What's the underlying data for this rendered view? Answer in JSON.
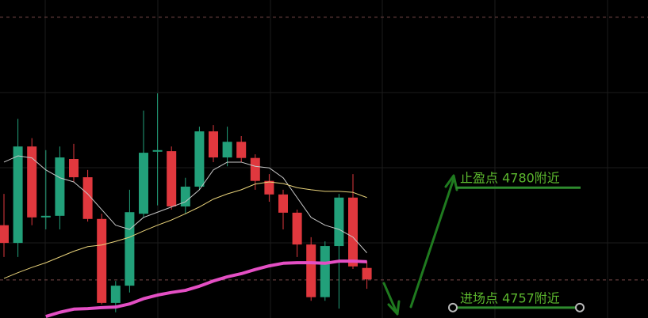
{
  "chart_data": {
    "type": "candlestick",
    "ylim": [
      4755,
      4816
    ],
    "up_color": "#22a07a",
    "down_color": "#e0383e",
    "open": [
      4772.8,
      4769.4,
      4787.9,
      4774.3,
      4774.6,
      4785.5,
      4782.0,
      4774.0,
      4757.9,
      4761.2,
      4775.0,
      4786.9,
      4787.0,
      4776.4,
      4780.2,
      4790.8,
      4785.8,
      4788.8,
      4785.7,
      4781.3,
      4778.7,
      4775.2,
      4769.1,
      4759.0,
      4768.8,
      4778.1,
      4764.6
    ],
    "high": [
      4778.8,
      4793.2,
      4789.5,
      4787.2,
      4787.9,
      4788.4,
      4783.4,
      4775.0,
      4762.1,
      4779.6,
      4794.8,
      4798.1,
      4787.9,
      4781.9,
      4791.7,
      4792.0,
      4791.7,
      4789.9,
      4786.4,
      4782.6,
      4779.6,
      4775.8,
      4770.5,
      4769.7,
      4778.8,
      4782.6,
      4765.9
    ],
    "low": [
      4766.7,
      4766.7,
      4772.8,
      4772.0,
      4772.0,
      4781.1,
      4773.5,
      4757.6,
      4756.1,
      4759.9,
      4774.3,
      4776.6,
      4775.8,
      4775.0,
      4779.6,
      4784.9,
      4784.1,
      4784.9,
      4779.6,
      4777.3,
      4772.0,
      4766.7,
      4758.3,
      4758.3,
      4756.8,
      4764.4,
      4760.6
    ],
    "close": [
      4769.4,
      4787.9,
      4774.3,
      4774.6,
      4785.8,
      4782.0,
      4774.0,
      4757.9,
      4761.2,
      4775.3,
      4786.7,
      4787.2,
      4776.4,
      4780.2,
      4790.8,
      4785.8,
      4788.8,
      4785.7,
      4781.3,
      4778.7,
      4775.2,
      4769.1,
      4759.0,
      4768.8,
      4778.1,
      4764.9,
      4762.4
    ],
    "series": [
      {
        "color": "#c8c8c8",
        "values": [
          4784.9,
          4786.1,
          4785.7,
          4783.4,
          4781.9,
          4781.1,
          4778.8,
          4775.8,
          4772.8,
          4772.0,
          4774.3,
          4775.3,
          4776.3,
          4777.3,
          4779.6,
          4783.4,
          4784.9,
          4784.9,
          4784.1,
          4783.8,
          4781.9,
          4778.1,
          4774.3,
          4772.8,
          4772.0,
          4770.5,
          4767.5
        ]
      },
      {
        "color": "#e8d27a",
        "values": [
          4762.6,
          4763.7,
          4764.7,
          4765.6,
          4766.7,
          4767.8,
          4768.7,
          4769.0,
          4769.7,
          4770.5,
          4771.7,
          4772.8,
          4773.8,
          4775.0,
          4776.3,
          4777.8,
          4778.8,
          4779.6,
          4780.7,
          4781.1,
          4780.8,
          4780.0,
          4779.6,
          4779.3,
          4779.3,
          4779.1,
          4778.1
        ]
      },
      {
        "color": "#e44fc4",
        "values": [
          null,
          null,
          null,
          4755.3,
          4756.1,
          4756.7,
          4756.8,
          4757.0,
          4757.1,
          4757.7,
          4758.7,
          4759.4,
          4759.9,
          4760.3,
          4761.1,
          4762.1,
          4762.9,
          4763.5,
          4764.3,
          4765.0,
          4765.5,
          4765.6,
          4765.6,
          4765.5,
          4765.9,
          4765.9,
          4765.8
        ]
      }
    ],
    "hlines": [
      4812.7,
      4762.3
    ],
    "annotations": [
      {
        "text": "止盈点 4780附近",
        "value": 4780
      },
      {
        "text": "进场点 4757附近",
        "value": 4757
      }
    ]
  }
}
